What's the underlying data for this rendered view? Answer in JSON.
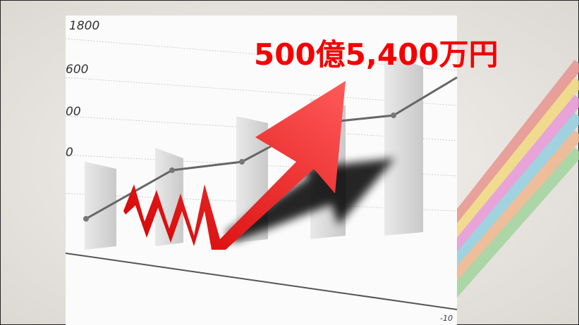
{
  "headline": "500億5,400万円",
  "photo_labels": [
    "1800",
    "600",
    "00",
    "0",
    "-10"
  ]
}
